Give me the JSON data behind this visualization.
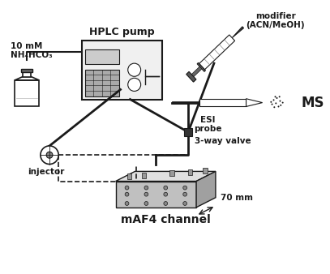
{
  "title": "",
  "bg_color": "#ffffff",
  "label_bottle": "10 mM\nNH₄HCO₃",
  "label_pump": "HPLC pump",
  "label_modifier": "modifier\n(ACN/MeOH)",
  "label_esi": "ESI\nprobe",
  "label_ms": "MS",
  "label_valve": "3-way valve",
  "label_injector": "injector",
  "label_channel": "mAF4 channel",
  "label_70mm": "70 mm",
  "line_color": "#1a1a1a",
  "box_color": "#cccccc",
  "gray_dark": "#444444",
  "gray_mid": "#888888",
  "gray_light": "#bbbbbb"
}
